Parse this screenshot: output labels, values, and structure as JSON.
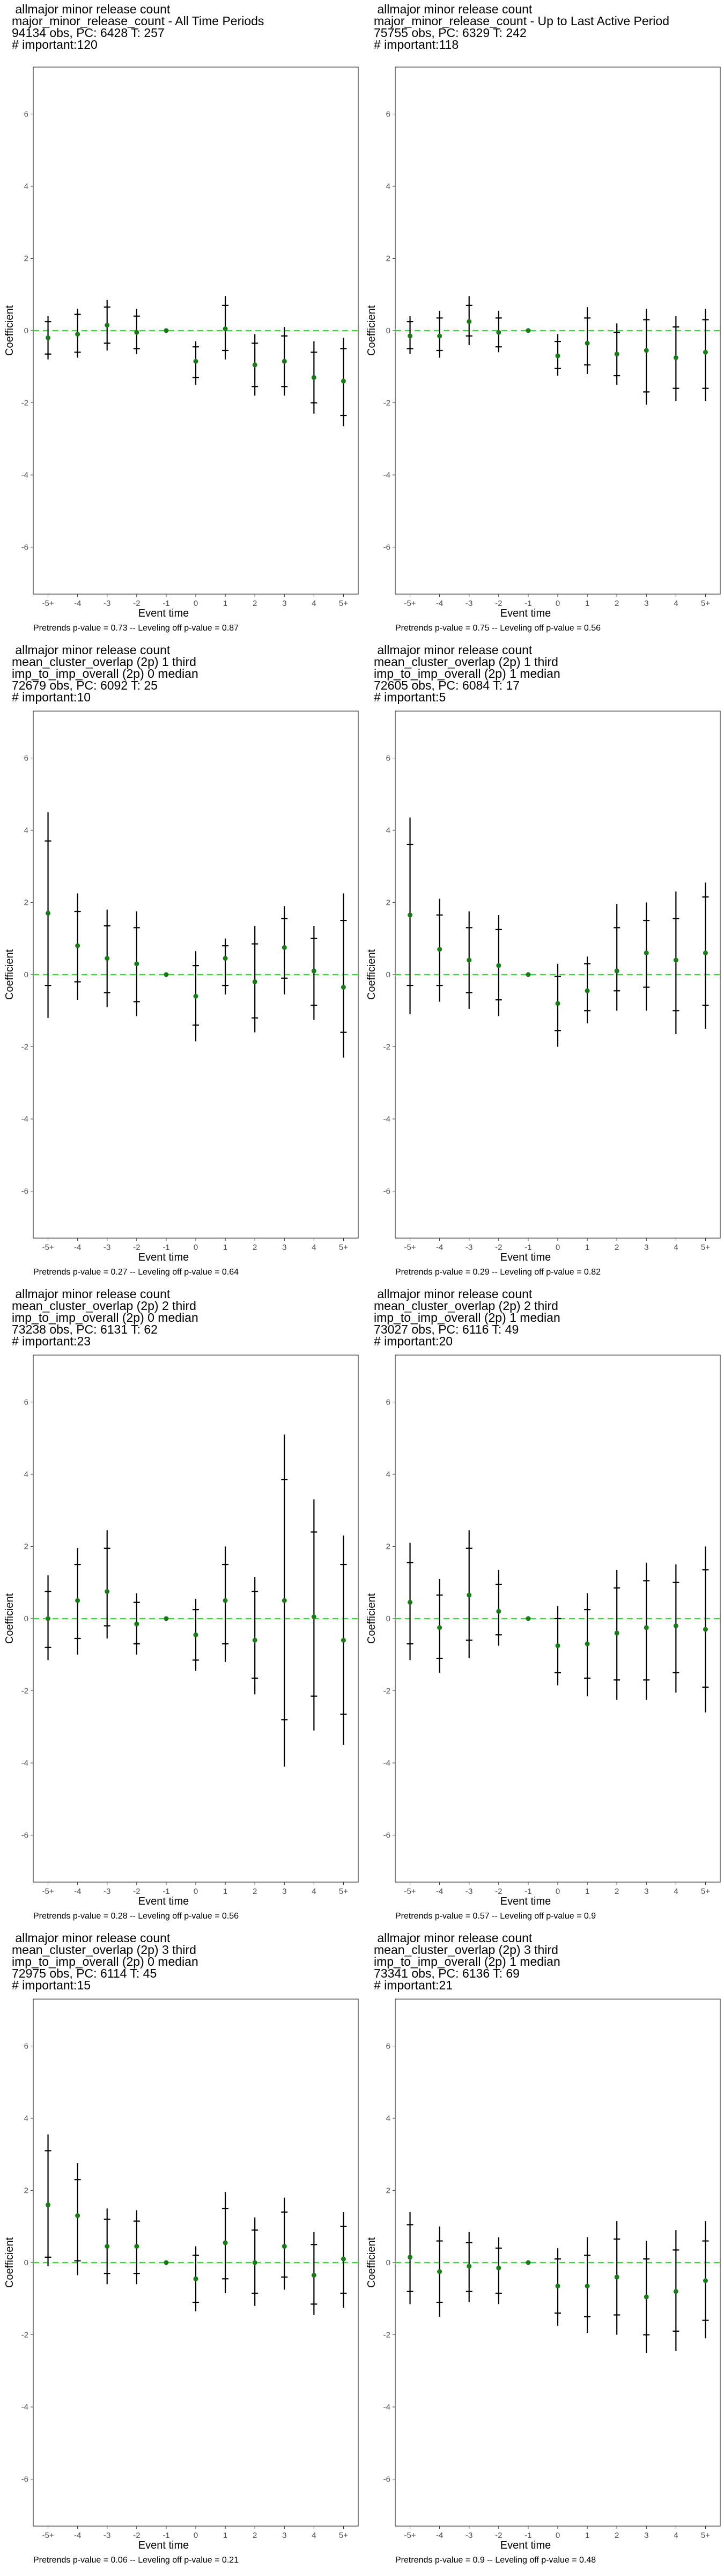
{
  "ylabel": "Coefficient",
  "xlabel": "Event time",
  "chart_data": [
    {
      "type": "scatter",
      "title_lines": [
        "allmajor minor release count",
        "major_minor_release_count - All Time Periods",
        "94134 obs, PC: 6428 T: 257",
        "# important:120"
      ],
      "footnote": "Pretrends p-value = 0.73 -- Leveling off p-value = 0.87",
      "categories": [
        "-5+",
        "-4",
        "-3",
        "-2",
        "-1",
        "0",
        "1",
        "2",
        "3",
        "4",
        "5+"
      ],
      "series": [
        {
          "values": [
            -0.2,
            -0.1,
            0.15,
            -0.05,
            0.0,
            -0.85,
            0.05,
            -0.95,
            -0.85,
            -1.3,
            -1.4
          ]
        }
      ],
      "ci_outer": [
        [
          -0.8,
          0.4
        ],
        [
          -0.75,
          0.6
        ],
        [
          -0.55,
          0.85
        ],
        [
          -0.65,
          0.6
        ],
        [
          0,
          0
        ],
        [
          -1.5,
          -0.3
        ],
        [
          -0.8,
          0.95
        ],
        [
          -1.8,
          -0.1
        ],
        [
          -1.8,
          0.1
        ],
        [
          -2.3,
          -0.3
        ],
        [
          -2.65,
          -0.2
        ]
      ],
      "ci_inner": [
        [
          -0.65,
          0.25
        ],
        [
          -0.6,
          0.45
        ],
        [
          -0.35,
          0.65
        ],
        [
          -0.5,
          0.4
        ],
        [
          0,
          0
        ],
        [
          -1.3,
          -0.45
        ],
        [
          -0.55,
          0.7
        ],
        [
          -1.55,
          -0.35
        ],
        [
          -1.55,
          -0.15
        ],
        [
          -2.0,
          -0.6
        ],
        [
          -2.35,
          -0.5
        ]
      ],
      "ylim": [
        -7.3,
        7.3
      ],
      "yticks": [
        -6,
        -4,
        -2,
        0,
        2,
        4,
        6
      ],
      "reference_line": 0
    },
    {
      "type": "scatter",
      "title_lines": [
        "allmajor minor release count",
        "major_minor_release_count - Up to Last Active Period",
        "75755 obs, PC: 6329 T: 242",
        "# important:118"
      ],
      "footnote": "Pretrends p-value = 0.75 -- Leveling off p-value = 0.56",
      "categories": [
        "-5+",
        "-4",
        "-3",
        "-2",
        "-1",
        "0",
        "1",
        "2",
        "3",
        "4",
        "5+"
      ],
      "series": [
        {
          "values": [
            -0.15,
            -0.15,
            0.25,
            -0.05,
            0.0,
            -0.7,
            -0.35,
            -0.65,
            -0.55,
            -0.75,
            -0.6
          ]
        }
      ],
      "ci_outer": [
        [
          -0.65,
          0.4
        ],
        [
          -0.75,
          0.55
        ],
        [
          -0.4,
          0.95
        ],
        [
          -0.6,
          0.55
        ],
        [
          0,
          0
        ],
        [
          -1.25,
          -0.1
        ],
        [
          -1.2,
          0.65
        ],
        [
          -1.5,
          0.2
        ],
        [
          -2.05,
          0.6
        ],
        [
          -1.95,
          0.4
        ],
        [
          -1.95,
          0.6
        ]
      ],
      "ci_inner": [
        [
          -0.5,
          0.25
        ],
        [
          -0.55,
          0.35
        ],
        [
          -0.15,
          0.7
        ],
        [
          -0.45,
          0.35
        ],
        [
          0,
          0
        ],
        [
          -1.05,
          -0.3
        ],
        [
          -0.95,
          0.35
        ],
        [
          -1.25,
          -0.05
        ],
        [
          -1.7,
          0.3
        ],
        [
          -1.6,
          0.1
        ],
        [
          -1.6,
          0.3
        ]
      ],
      "ylim": [
        -7.3,
        7.3
      ],
      "yticks": [
        -6,
        -4,
        -2,
        0,
        2,
        4,
        6
      ],
      "reference_line": 0
    },
    {
      "type": "scatter",
      "title_lines": [
        "allmajor minor release count",
        "mean_cluster_overlap (2p) 1 third",
        "imp_to_imp_overall (2p) 0 median",
        "72679 obs, PC: 6092 T: 25",
        "# important:10"
      ],
      "footnote": "Pretrends p-value = 0.27 -- Leveling off p-value = 0.64",
      "categories": [
        "-5+",
        "-4",
        "-3",
        "-2",
        "-1",
        "0",
        "1",
        "2",
        "3",
        "4",
        "5+"
      ],
      "series": [
        {
          "values": [
            1.7,
            0.8,
            0.45,
            0.3,
            0.0,
            -0.6,
            0.45,
            -0.2,
            0.75,
            0.1,
            -0.35
          ]
        }
      ],
      "ci_outer": [
        [
          -1.2,
          4.5
        ],
        [
          -0.7,
          2.25
        ],
        [
          -0.9,
          1.8
        ],
        [
          -1.15,
          1.75
        ],
        [
          0,
          0
        ],
        [
          -1.85,
          0.65
        ],
        [
          -0.55,
          1.0
        ],
        [
          -1.6,
          1.35
        ],
        [
          -0.55,
          1.9
        ],
        [
          -1.25,
          1.35
        ],
        [
          -2.3,
          2.25
        ]
      ],
      "ci_inner": [
        [
          -0.3,
          3.7
        ],
        [
          -0.2,
          1.75
        ],
        [
          -0.5,
          1.35
        ],
        [
          -0.75,
          1.3
        ],
        [
          0,
          0
        ],
        [
          -1.4,
          0.25
        ],
        [
          -0.3,
          0.8
        ],
        [
          -1.2,
          0.85
        ],
        [
          -0.1,
          1.55
        ],
        [
          -0.85,
          1.0
        ],
        [
          -1.6,
          1.5
        ]
      ],
      "ylim": [
        -7.3,
        7.3
      ],
      "yticks": [
        -6,
        -4,
        -2,
        0,
        2,
        4,
        6
      ],
      "reference_line": 0
    },
    {
      "type": "scatter",
      "title_lines": [
        "allmajor minor release count",
        "mean_cluster_overlap (2p) 1 third",
        "imp_to_imp_overall (2p) 1 median",
        "72605 obs, PC: 6084 T: 17",
        "# important:5"
      ],
      "footnote": "Pretrends p-value = 0.29 -- Leveling off p-value = 0.82",
      "categories": [
        "-5+",
        "-4",
        "-3",
        "-2",
        "-1",
        "0",
        "1",
        "2",
        "3",
        "4",
        "5+"
      ],
      "series": [
        {
          "values": [
            1.65,
            0.7,
            0.4,
            0.25,
            0.0,
            -0.8,
            -0.45,
            0.1,
            0.6,
            0.4,
            0.6
          ]
        }
      ],
      "ci_outer": [
        [
          -1.1,
          4.35
        ],
        [
          -0.75,
          2.1
        ],
        [
          -0.95,
          1.75
        ],
        [
          -1.15,
          1.65
        ],
        [
          0,
          0
        ],
        [
          -2.0,
          0.3
        ],
        [
          -1.35,
          0.5
        ],
        [
          -1.0,
          1.95
        ],
        [
          -1.0,
          2.0
        ],
        [
          -1.65,
          2.3
        ],
        [
          -1.5,
          2.55
        ]
      ],
      "ci_inner": [
        [
          -0.3,
          3.6
        ],
        [
          -0.3,
          1.65
        ],
        [
          -0.5,
          1.3
        ],
        [
          -0.7,
          1.25
        ],
        [
          0,
          0
        ],
        [
          -1.55,
          -0.05
        ],
        [
          -1.0,
          0.3
        ],
        [
          -0.45,
          1.3
        ],
        [
          -0.35,
          1.5
        ],
        [
          -1.0,
          1.55
        ],
        [
          -0.85,
          2.15
        ]
      ],
      "ylim": [
        -7.3,
        7.3
      ],
      "yticks": [
        -6,
        -4,
        -2,
        0,
        2,
        4,
        6
      ],
      "reference_line": 0
    },
    {
      "type": "scatter",
      "title_lines": [
        "allmajor minor release count",
        "mean_cluster_overlap (2p) 2 third",
        "imp_to_imp_overall (2p) 0 median",
        "73238 obs, PC: 6131 T: 62",
        "# important:23"
      ],
      "footnote": "Pretrends p-value = 0.28 -- Leveling off p-value = 0.56",
      "categories": [
        "-5+",
        "-4",
        "-3",
        "-2",
        "-1",
        "0",
        "1",
        "2",
        "3",
        "4",
        "5+"
      ],
      "series": [
        {
          "values": [
            0.0,
            0.5,
            0.75,
            -0.15,
            0.0,
            -0.45,
            0.5,
            -0.6,
            0.5,
            0.05,
            -0.6
          ]
        }
      ],
      "ci_outer": [
        [
          -1.15,
          1.2
        ],
        [
          -1.0,
          1.95
        ],
        [
          -0.55,
          2.45
        ],
        [
          -1.0,
          0.7
        ],
        [
          0,
          0
        ],
        [
          -1.45,
          0.55
        ],
        [
          -1.2,
          2.0
        ],
        [
          -2.1,
          1.15
        ],
        [
          -4.1,
          5.1
        ],
        [
          -3.1,
          3.3
        ],
        [
          -3.5,
          2.3
        ]
      ],
      "ci_inner": [
        [
          -0.8,
          0.75
        ],
        [
          -0.55,
          1.5
        ],
        [
          -0.2,
          1.95
        ],
        [
          -0.7,
          0.45
        ],
        [
          0,
          0
        ],
        [
          -1.15,
          0.25
        ],
        [
          -0.7,
          1.5
        ],
        [
          -1.65,
          0.75
        ],
        [
          -2.8,
          3.85
        ],
        [
          -2.15,
          2.4
        ],
        [
          -2.65,
          1.5
        ]
      ],
      "ylim": [
        -7.3,
        7.3
      ],
      "yticks": [
        -6,
        -4,
        -2,
        0,
        2,
        4,
        6
      ],
      "reference_line": 0
    },
    {
      "type": "scatter",
      "title_lines": [
        "allmajor minor release count",
        "mean_cluster_overlap (2p) 2 third",
        "imp_to_imp_overall (2p) 1 median",
        "73027 obs, PC: 6116 T: 49",
        "# important:20"
      ],
      "footnote": "Pretrends p-value = 0.57 -- Leveling off p-value = 0.9",
      "categories": [
        "-5+",
        "-4",
        "-3",
        "-2",
        "-1",
        "0",
        "1",
        "2",
        "3",
        "4",
        "5+"
      ],
      "series": [
        {
          "values": [
            0.45,
            -0.25,
            0.65,
            0.2,
            0.0,
            -0.75,
            -0.7,
            -0.4,
            -0.25,
            -0.2,
            -0.3
          ]
        }
      ],
      "ci_outer": [
        [
          -1.15,
          2.1
        ],
        [
          -1.5,
          1.1
        ],
        [
          -1.1,
          2.45
        ],
        [
          -0.75,
          1.35
        ],
        [
          0,
          0
        ],
        [
          -1.85,
          0.35
        ],
        [
          -2.15,
          0.7
        ],
        [
          -2.25,
          1.35
        ],
        [
          -2.25,
          1.55
        ],
        [
          -2.05,
          1.5
        ],
        [
          -2.6,
          2.0
        ]
      ],
      "ci_inner": [
        [
          -0.7,
          1.55
        ],
        [
          -1.1,
          0.65
        ],
        [
          -0.6,
          1.95
        ],
        [
          -0.45,
          0.95
        ],
        [
          0,
          0
        ],
        [
          -1.5,
          0.0
        ],
        [
          -1.65,
          0.25
        ],
        [
          -1.7,
          0.85
        ],
        [
          -1.7,
          1.05
        ],
        [
          -1.5,
          1.0
        ],
        [
          -1.9,
          1.35
        ]
      ],
      "ylim": [
        -7.3,
        7.3
      ],
      "yticks": [
        -6,
        -4,
        -2,
        0,
        2,
        4,
        6
      ],
      "reference_line": 0
    },
    {
      "type": "scatter",
      "title_lines": [
        "allmajor minor release count",
        "mean_cluster_overlap (2p) 3 third",
        "imp_to_imp_overall (2p) 0 median",
        "72975 obs, PC: 6114 T: 45",
        "# important:15"
      ],
      "footnote": "Pretrends p-value = 0.06 -- Leveling off p-value = 0.21",
      "categories": [
        "-5+",
        "-4",
        "-3",
        "-2",
        "-1",
        "0",
        "1",
        "2",
        "3",
        "4",
        "5+"
      ],
      "series": [
        {
          "values": [
            1.6,
            1.3,
            0.45,
            0.45,
            0.0,
            -0.45,
            0.55,
            0.0,
            0.45,
            -0.35,
            0.1
          ]
        }
      ],
      "ci_outer": [
        [
          -0.1,
          3.55
        ],
        [
          -0.35,
          2.75
        ],
        [
          -0.6,
          1.5
        ],
        [
          -0.6,
          1.45
        ],
        [
          0,
          0
        ],
        [
          -1.35,
          0.45
        ],
        [
          -0.85,
          1.95
        ],
        [
          -1.2,
          1.25
        ],
        [
          -0.75,
          1.8
        ],
        [
          -1.45,
          0.85
        ],
        [
          -1.25,
          1.4
        ]
      ],
      "ci_inner": [
        [
          0.15,
          3.1
        ],
        [
          0.05,
          2.3
        ],
        [
          -0.3,
          1.2
        ],
        [
          -0.3,
          1.15
        ],
        [
          0,
          0
        ],
        [
          -1.1,
          0.2
        ],
        [
          -0.45,
          1.5
        ],
        [
          -0.85,
          0.9
        ],
        [
          -0.4,
          1.4
        ],
        [
          -1.15,
          0.5
        ],
        [
          -0.85,
          1.0
        ]
      ],
      "ylim": [
        -7.3,
        7.3
      ],
      "yticks": [
        -6,
        -4,
        -2,
        0,
        2,
        4,
        6
      ],
      "reference_line": 0
    },
    {
      "type": "scatter",
      "title_lines": [
        "allmajor minor release count",
        "mean_cluster_overlap (2p) 3 third",
        "imp_to_imp_overall (2p) 1 median",
        "73341 obs, PC: 6136 T: 69",
        "# important:21"
      ],
      "footnote": "Pretrends p-value = 0.9 -- Leveling off p-value = 0.48",
      "categories": [
        "-5+",
        "-4",
        "-3",
        "-2",
        "-1",
        "0",
        "1",
        "2",
        "3",
        "4",
        "5+"
      ],
      "series": [
        {
          "values": [
            0.15,
            -0.25,
            -0.1,
            -0.15,
            0.0,
            -0.65,
            -0.65,
            -0.4,
            -0.95,
            -0.8,
            -0.5
          ]
        }
      ],
      "ci_outer": [
        [
          -1.15,
          1.4
        ],
        [
          -1.5,
          1.0
        ],
        [
          -1.1,
          0.85
        ],
        [
          -1.15,
          0.7
        ],
        [
          0,
          0
        ],
        [
          -1.75,
          0.4
        ],
        [
          -1.95,
          0.7
        ],
        [
          -2.0,
          1.15
        ],
        [
          -2.5,
          0.6
        ],
        [
          -2.45,
          0.9
        ],
        [
          -2.1,
          1.15
        ]
      ],
      "ci_inner": [
        [
          -0.8,
          1.05
        ],
        [
          -1.1,
          0.6
        ],
        [
          -0.8,
          0.55
        ],
        [
          -0.85,
          0.4
        ],
        [
          0,
          0
        ],
        [
          -1.4,
          0.1
        ],
        [
          -1.5,
          0.2
        ],
        [
          -1.45,
          0.65
        ],
        [
          -2.0,
          0.1
        ],
        [
          -1.9,
          0.35
        ],
        [
          -1.6,
          0.6
        ]
      ],
      "ylim": [
        -7.3,
        7.3
      ],
      "yticks": [
        -6,
        -4,
        -2,
        0,
        2,
        4,
        6
      ],
      "reference_line": 0
    }
  ],
  "colors": {
    "point": "#1a7a1a",
    "errorbar": "#000000",
    "reference_line": "#33dd33",
    "axis_text": "#4d4d4d",
    "panel_border": "#333333"
  }
}
